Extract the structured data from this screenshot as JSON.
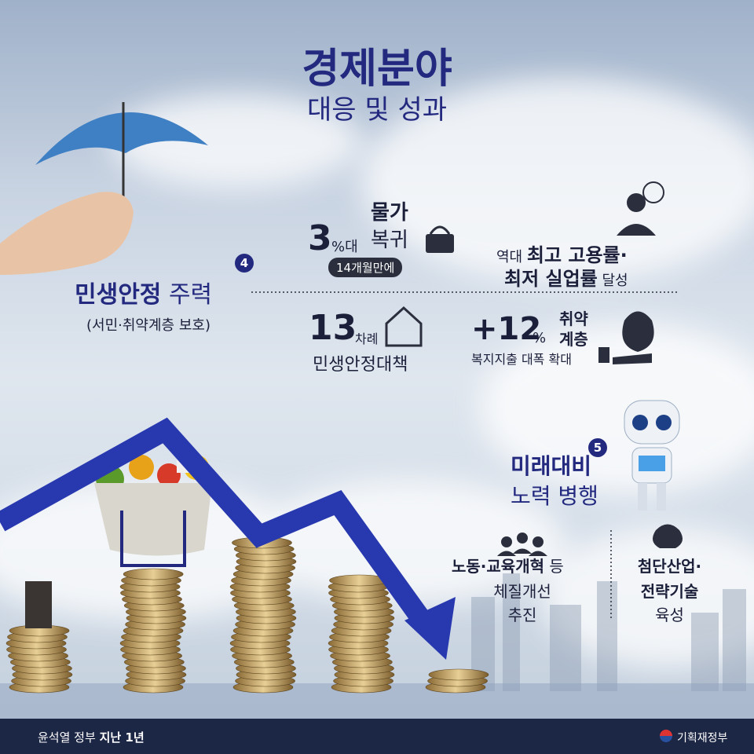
{
  "title": "경제분야",
  "subtitle": "대응 및 성과",
  "section4": {
    "number": "4",
    "title_bold": "민생안정",
    "title_rest": "주력",
    "note": "(서민·취약계층 보호)",
    "stats": [
      {
        "number": "3",
        "unit": "%대",
        "label1": "물가",
        "label2": "복귀",
        "note": "14개월만에"
      },
      {
        "prefix": "역대",
        "line1": "최고 고용률·",
        "line2": "최저 실업률",
        "suffix": "달성"
      },
      {
        "number": "13",
        "unit": "차례",
        "label": "민생안정대책"
      },
      {
        "number": "+12",
        "unit": "%",
        "label1": "취약",
        "label2": "계층",
        "note": "복지지출 대폭 확대"
      }
    ]
  },
  "section5": {
    "number": "5",
    "title1": "미래대비",
    "title2": "노력 병행",
    "items": [
      {
        "bold": "노동·교육개혁",
        "suffix": "등",
        "line2": "체질개선",
        "line3": "추진"
      },
      {
        "line1": "첨단산업·",
        "line2": "전략기술",
        "line3": "육성"
      }
    ]
  },
  "footer": {
    "left_regular": "윤석열 정부",
    "left_bold": "지난 1년",
    "right": "기획재정부"
  }
}
